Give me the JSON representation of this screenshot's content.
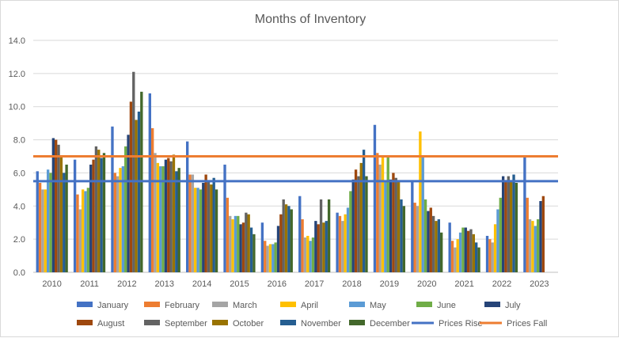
{
  "chart_data": {
    "type": "bar",
    "title": "Months of Inventory",
    "xlabel": "",
    "ylabel": "",
    "ylim": [
      0,
      14
    ],
    "yticks": [
      "0.0",
      "2.0",
      "4.0",
      "6.0",
      "8.0",
      "10.0",
      "12.0",
      "14.0"
    ],
    "grid": true,
    "legend_position": "bottom",
    "categories": [
      "2010",
      "2011",
      "2012",
      "2013",
      "2014",
      "2015",
      "2016",
      "2017",
      "2018",
      "2019",
      "2020",
      "2021",
      "2022",
      "2023"
    ],
    "series": [
      {
        "name": "January",
        "color": "#4472C4",
        "values": [
          6.1,
          6.8,
          8.8,
          10.8,
          7.9,
          6.5,
          3.0,
          4.6,
          3.6,
          8.9,
          5.5,
          3.0,
          2.2,
          7.0
        ]
      },
      {
        "name": "February",
        "color": "#ED7D31",
        "values": [
          5.4,
          4.7,
          6.0,
          8.7,
          5.9,
          4.5,
          1.9,
          3.2,
          3.4,
          7.2,
          4.2,
          1.9,
          2.0,
          4.5
        ]
      },
      {
        "name": "March",
        "color": "#A5A5A5",
        "values": [
          5.0,
          3.8,
          5.8,
          7.2,
          5.9,
          3.4,
          1.6,
          2.1,
          3.1,
          6.5,
          4.0,
          1.5,
          1.8,
          3.2
        ]
      },
      {
        "name": "April",
        "color": "#FFC000",
        "values": [
          5.0,
          5.0,
          6.3,
          6.6,
          5.1,
          3.2,
          1.7,
          2.2,
          3.5,
          7.0,
          8.5,
          2.0,
          2.9,
          3.1
        ]
      },
      {
        "name": "May",
        "color": "#5B9BD5",
        "values": [
          6.2,
          4.9,
          6.4,
          6.4,
          5.1,
          3.4,
          1.7,
          1.9,
          3.9,
          5.5,
          7.0,
          2.4,
          3.8,
          2.8
        ]
      },
      {
        "name": "June",
        "color": "#70AD47",
        "values": [
          6.0,
          5.1,
          7.6,
          6.4,
          5.0,
          3.4,
          1.8,
          2.1,
          4.9,
          7.0,
          4.4,
          2.7,
          4.5,
          3.2
        ]
      },
      {
        "name": "July",
        "color": "#264478",
        "values": [
          8.1,
          6.5,
          8.3,
          6.8,
          5.4,
          2.9,
          2.8,
          3.1,
          5.6,
          5.6,
          3.7,
          2.7,
          5.8,
          4.3
        ]
      },
      {
        "name": "August",
        "color": "#9E480E",
        "values": [
          8.0,
          6.8,
          10.3,
          6.9,
          5.9,
          3.0,
          3.5,
          2.9,
          6.2,
          6.0,
          3.9,
          2.5,
          5.5,
          4.6
        ]
      },
      {
        "name": "September",
        "color": "#636363",
        "values": [
          7.7,
          7.6,
          12.1,
          6.7,
          5.5,
          3.6,
          4.4,
          4.4,
          5.8,
          5.7,
          3.4,
          2.6,
          5.8,
          null
        ]
      },
      {
        "name": "October",
        "color": "#997300",
        "values": [
          7.0,
          7.4,
          9.2,
          7.1,
          5.3,
          3.5,
          4.1,
          3.0,
          6.6,
          5.5,
          3.1,
          2.3,
          5.5,
          null
        ]
      },
      {
        "name": "November",
        "color": "#255E91",
        "values": [
          6.0,
          6.9,
          9.7,
          6.1,
          5.7,
          2.7,
          4.0,
          3.1,
          7.4,
          4.4,
          3.2,
          1.8,
          5.9,
          null
        ]
      },
      {
        "name": "December",
        "color": "#43682B",
        "values": [
          6.5,
          7.2,
          10.9,
          6.3,
          5.0,
          2.3,
          3.8,
          4.4,
          5.8,
          4.0,
          2.4,
          1.5,
          5.4,
          null
        ]
      }
    ],
    "lines": [
      {
        "name": "Prices Rise",
        "color": "#4472C4",
        "value": 5.5
      },
      {
        "name": "Prices Fall",
        "color": "#ED7D31",
        "value": 7.0
      }
    ]
  }
}
